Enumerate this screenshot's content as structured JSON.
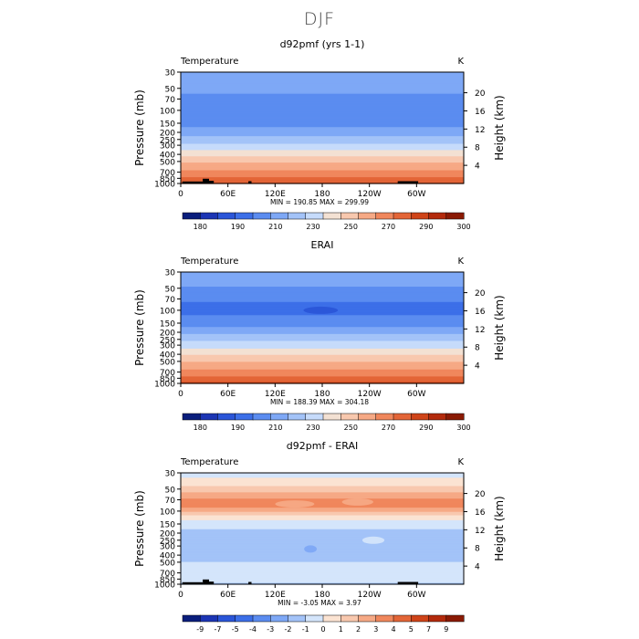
{
  "page": {
    "title": "DJF"
  },
  "palettes": {
    "temperature": [
      "#0a1e7c",
      "#1c35b4",
      "#2a55d8",
      "#3c6fe8",
      "#5b8cf0",
      "#7ea8f6",
      "#a3c3f8",
      "#c6dbfb",
      "#f3e1d3",
      "#f8c8ae",
      "#f6a985",
      "#f0875c",
      "#e36537",
      "#cf4419",
      "#b32a0c",
      "#8a1a04"
    ],
    "difference": [
      "#0a1e7c",
      "#1c35b4",
      "#2a55d8",
      "#3c6fe8",
      "#5b8cf0",
      "#7ea8f6",
      "#a3c3f8",
      "#d4e5fb",
      "#fbe3d2",
      "#f8c8ae",
      "#f6a985",
      "#f0875c",
      "#e36537",
      "#cf4419",
      "#b32a0c",
      "#8a1a04"
    ]
  },
  "chart_data": [
    {
      "type": "heatmap",
      "title": "d92pmf (yrs 1-1)",
      "variable_label": "Temperature",
      "units_label": "K",
      "xlabel": "",
      "ylabel": "Pressure (mb)",
      "right_label": "Height (km)",
      "x_ticks": [
        "0",
        "60E",
        "120E",
        "180",
        "120W",
        "60W"
      ],
      "x_tick_values": [
        0,
        60,
        120,
        180,
        240,
        300
      ],
      "xlim": [
        0,
        360
      ],
      "y_ticks": [
        "30",
        "50",
        "70",
        "100",
        "150",
        "200",
        "250",
        "300",
        "400",
        "500",
        "700",
        "850",
        "1000"
      ],
      "y_tick_values": [
        30,
        50,
        70,
        100,
        150,
        200,
        250,
        300,
        400,
        500,
        700,
        850,
        1000
      ],
      "ylim": [
        1000,
        30
      ],
      "height_ticks": [
        "4",
        "8",
        "12",
        "16",
        "20"
      ],
      "height_tick_values": [
        4,
        8,
        12,
        16,
        20
      ],
      "stats_text": "MIN = 190.85   MAX = 299.99",
      "min": 190.85,
      "max": 299.99,
      "colorbar_labels": [
        "180",
        "190",
        "210",
        "230",
        "250",
        "270",
        "290",
        "300"
      ],
      "colorbar_levels": [
        180,
        185,
        190,
        200,
        210,
        220,
        230,
        240,
        250,
        260,
        270,
        280,
        290,
        295,
        300
      ],
      "palette": "temperature",
      "profile": [
        {
          "p": 30,
          "v": 220
        },
        {
          "p": 50,
          "v": 213
        },
        {
          "p": 70,
          "v": 207
        },
        {
          "p": 100,
          "v": 203
        },
        {
          "p": 150,
          "v": 206
        },
        {
          "p": 200,
          "v": 215
        },
        {
          "p": 250,
          "v": 225
        },
        {
          "p": 300,
          "v": 232
        },
        {
          "p": 400,
          "v": 247
        },
        {
          "p": 500,
          "v": 258
        },
        {
          "p": 700,
          "v": 273
        },
        {
          "p": 850,
          "v": 282
        },
        {
          "p": 1000,
          "v": 291
        }
      ],
      "anomalies": [],
      "topography": [
        {
          "lon_start": 2,
          "lon_end": 28,
          "p_top": 940
        },
        {
          "lon_start": 28,
          "lon_end": 36,
          "p_top": 860
        },
        {
          "lon_start": 36,
          "lon_end": 42,
          "p_top": 920
        },
        {
          "lon_start": 86,
          "lon_end": 90,
          "p_top": 930
        },
        {
          "lon_start": 276,
          "lon_end": 302,
          "p_top": 930
        }
      ]
    },
    {
      "type": "heatmap",
      "title": "ERAI",
      "variable_label": "Temperature",
      "units_label": "K",
      "xlabel": "",
      "ylabel": "Pressure (mb)",
      "right_label": "Height (km)",
      "x_ticks": [
        "0",
        "60E",
        "120E",
        "180",
        "120W",
        "60W"
      ],
      "x_tick_values": [
        0,
        60,
        120,
        180,
        240,
        300
      ],
      "xlim": [
        0,
        360
      ],
      "y_ticks": [
        "30",
        "50",
        "70",
        "100",
        "150",
        "200",
        "250",
        "300",
        "400",
        "500",
        "700",
        "850",
        "1000"
      ],
      "y_tick_values": [
        30,
        50,
        70,
        100,
        150,
        200,
        250,
        300,
        400,
        500,
        700,
        850,
        1000
      ],
      "ylim": [
        1000,
        30
      ],
      "height_ticks": [
        "4",
        "8",
        "12",
        "16",
        "20"
      ],
      "height_tick_values": [
        4,
        8,
        12,
        16,
        20
      ],
      "stats_text": "MIN = 188.39   MAX = 304.18",
      "min": 188.39,
      "max": 304.18,
      "colorbar_labels": [
        "180",
        "190",
        "210",
        "230",
        "250",
        "270",
        "290",
        "300"
      ],
      "colorbar_levels": [
        180,
        185,
        190,
        200,
        210,
        220,
        230,
        240,
        250,
        260,
        270,
        280,
        290,
        295,
        300
      ],
      "palette": "temperature",
      "profile": [
        {
          "p": 30,
          "v": 219
        },
        {
          "p": 50,
          "v": 209
        },
        {
          "p": 70,
          "v": 201
        },
        {
          "p": 100,
          "v": 197
        },
        {
          "p": 150,
          "v": 205
        },
        {
          "p": 200,
          "v": 217
        },
        {
          "p": 250,
          "v": 228
        },
        {
          "p": 300,
          "v": 235
        },
        {
          "p": 400,
          "v": 249
        },
        {
          "p": 500,
          "v": 259
        },
        {
          "p": 700,
          "v": 274
        },
        {
          "p": 850,
          "v": 283
        },
        {
          "p": 1000,
          "v": 293
        }
      ],
      "anomalies": [
        {
          "lon": 178,
          "p": 100,
          "half_width_deg": 22,
          "v": 189.5
        }
      ],
      "topography": []
    },
    {
      "type": "heatmap",
      "title": "d92pmf - ERAI",
      "variable_label": "Temperature",
      "units_label": "K",
      "xlabel": "",
      "ylabel": "Pressure (mb)",
      "right_label": "Height (km)",
      "x_ticks": [
        "0",
        "60E",
        "120E",
        "180",
        "120W",
        "60W"
      ],
      "x_tick_values": [
        0,
        60,
        120,
        180,
        240,
        300
      ],
      "xlim": [
        0,
        360
      ],
      "y_ticks": [
        "30",
        "50",
        "70",
        "100",
        "150",
        "200",
        "250",
        "300",
        "400",
        "500",
        "700",
        "850",
        "1000"
      ],
      "y_tick_values": [
        30,
        50,
        70,
        100,
        150,
        200,
        250,
        300,
        400,
        500,
        700,
        850,
        1000
      ],
      "ylim": [
        1000,
        30
      ],
      "height_ticks": [
        "4",
        "8",
        "12",
        "16",
        "20"
      ],
      "height_tick_values": [
        4,
        8,
        12,
        16,
        20
      ],
      "stats_text": "MIN =  -3.05   MAX =   3.97",
      "min": -3.05,
      "max": 3.97,
      "colorbar_labels": [
        "-9",
        "-7",
        "-5",
        "-4",
        "-3",
        "-2",
        "-1",
        "0",
        "1",
        "2",
        "3",
        "4",
        "5",
        "7",
        "9"
      ],
      "colorbar_levels": [
        -9,
        -7,
        -5,
        -4,
        -3,
        -2,
        -1,
        0,
        1,
        2,
        3,
        4,
        5,
        7,
        9
      ],
      "palette": "difference",
      "profile": [
        {
          "p": 30,
          "v": -0.3
        },
        {
          "p": 40,
          "v": 0.3
        },
        {
          "p": 50,
          "v": 1.5
        },
        {
          "p": 60,
          "v": 2.4
        },
        {
          "p": 70,
          "v": 3.2
        },
        {
          "p": 85,
          "v": 3.3
        },
        {
          "p": 100,
          "v": 2.2
        },
        {
          "p": 120,
          "v": 0.5
        },
        {
          "p": 150,
          "v": -0.6
        },
        {
          "p": 200,
          "v": -1.3
        },
        {
          "p": 300,
          "v": -1.5
        },
        {
          "p": 400,
          "v": -1.4
        },
        {
          "p": 500,
          "v": -1.0
        },
        {
          "p": 700,
          "v": -0.8
        },
        {
          "p": 850,
          "v": -0.5
        },
        {
          "p": 1000,
          "v": -1.2
        }
      ],
      "anomalies": [
        {
          "lon": 145,
          "p": 80,
          "half_width_deg": 25,
          "v": 2.2
        },
        {
          "lon": 225,
          "p": 75,
          "half_width_deg": 20,
          "v": 2.6
        },
        {
          "lon": 165,
          "p": 330,
          "half_width_deg": 8,
          "v": -2.6
        },
        {
          "lon": 245,
          "p": 250,
          "half_width_deg": 14,
          "v": -0.6
        }
      ],
      "topography": [
        {
          "lon_start": 2,
          "lon_end": 28,
          "p_top": 940
        },
        {
          "lon_start": 28,
          "lon_end": 36,
          "p_top": 860
        },
        {
          "lon_start": 36,
          "lon_end": 42,
          "p_top": 920
        },
        {
          "lon_start": 86,
          "lon_end": 90,
          "p_top": 930
        },
        {
          "lon_start": 276,
          "lon_end": 302,
          "p_top": 930
        }
      ]
    }
  ]
}
